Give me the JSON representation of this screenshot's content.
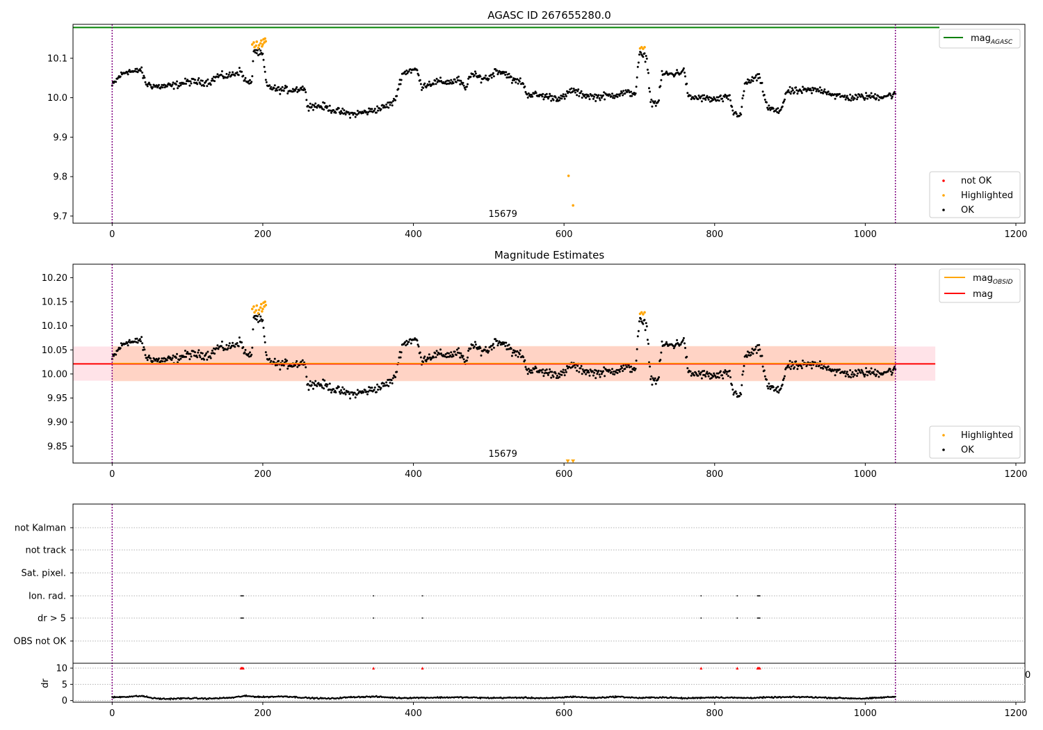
{
  "chart_data": [
    {
      "type": "scatter",
      "title": "AGASC ID 267655280.0",
      "xlim": [
        -52,
        1212
      ],
      "ylim": [
        9.682,
        10.186
      ],
      "xticks": [
        0,
        200,
        400,
        600,
        800,
        1000,
        1200
      ],
      "xtick_labels": [
        "0",
        "200",
        "400",
        "600",
        "800",
        "1000",
        "1200"
      ],
      "yticks": [
        9.7,
        9.8,
        9.9,
        10.0,
        10.1
      ],
      "ytick_labels": [
        "9.7",
        "9.8",
        "9.9",
        "10.0",
        "10.1"
      ],
      "obsid_label": "15679",
      "obsid_label_x": 520,
      "vlines": [
        0,
        1040
      ],
      "hline": {
        "name": "mag",
        "sub": "AGASC",
        "y": 10.178,
        "color": "#008000"
      },
      "legend_top": {
        "entries": [
          {
            "label": "mag",
            "sub": "AGASC",
            "color": "#008000"
          }
        ],
        "position": "top-right"
      },
      "legend_bottom": {
        "entries": [
          {
            "label": "not OK",
            "color": "#ff0000"
          },
          {
            "label": "Highlighted",
            "color": "#ffa500"
          },
          {
            "label": "OK",
            "color": "#000000"
          }
        ],
        "position": "bottom-right"
      },
      "series": [
        {
          "name": "OK",
          "color": "#000000",
          "trend": [
            [
              0,
              10.03
            ],
            [
              10,
              10.055
            ],
            [
              20,
              10.068
            ],
            [
              30,
              10.065
            ],
            [
              38,
              10.072
            ],
            [
              45,
              10.035
            ],
            [
              60,
              10.028
            ],
            [
              80,
              10.03
            ],
            [
              100,
              10.04
            ],
            [
              120,
              10.04
            ],
            [
              130,
              10.04
            ],
            [
              140,
              10.055
            ],
            [
              155,
              10.055
            ],
            [
              170,
              10.068
            ],
            [
              178,
              10.04
            ],
            [
              185,
              10.035
            ],
            [
              188,
              10.12
            ],
            [
              200,
              10.108
            ],
            [
              205,
              10.03
            ],
            [
              220,
              10.02
            ],
            [
              240,
              10.02
            ],
            [
              255,
              10.025
            ],
            [
              260,
              9.98
            ],
            [
              280,
              9.978
            ],
            [
              300,
              9.965
            ],
            [
              320,
              9.958
            ],
            [
              340,
              9.965
            ],
            [
              360,
              9.975
            ],
            [
              375,
              9.99
            ],
            [
              385,
              10.06
            ],
            [
              395,
              10.07
            ],
            [
              405,
              10.07
            ],
            [
              410,
              10.03
            ],
            [
              430,
              10.04
            ],
            [
              450,
              10.04
            ],
            [
              460,
              10.045
            ],
            [
              470,
              10.02
            ],
            [
              475,
              10.06
            ],
            [
              490,
              10.05
            ],
            [
              500,
              10.05
            ],
            [
              510,
              10.07
            ],
            [
              525,
              10.06
            ],
            [
              530,
              10.045
            ],
            [
              545,
              10.04
            ],
            [
              550,
              10.01
            ],
            [
              570,
              10.005
            ],
            [
              590,
              10.0
            ],
            [
              600,
              10.0
            ],
            [
              610,
              10.02
            ],
            [
              620,
              10.01
            ],
            [
              640,
              10.002
            ],
            [
              660,
              10.005
            ],
            [
              680,
              10.012
            ],
            [
              695,
              10.012
            ],
            [
              700,
              10.11
            ],
            [
              710,
              10.1
            ],
            [
              715,
              9.99
            ],
            [
              725,
              9.985
            ],
            [
              730,
              10.06
            ],
            [
              745,
              10.06
            ],
            [
              760,
              10.068
            ],
            [
              765,
              10.0
            ],
            [
              780,
              10.0
            ],
            [
              800,
              9.995
            ],
            [
              820,
              10.0
            ],
            [
              825,
              9.96
            ],
            [
              835,
              9.958
            ],
            [
              840,
              10.035
            ],
            [
              855,
              10.05
            ],
            [
              860,
              10.05
            ],
            [
              870,
              9.975
            ],
            [
              885,
              9.963
            ],
            [
              890,
              9.98
            ],
            [
              895,
              10.015
            ],
            [
              920,
              10.018
            ],
            [
              940,
              10.02
            ],
            [
              950,
              10.015
            ],
            [
              960,
              10.005
            ],
            [
              980,
              10.0
            ],
            [
              1000,
              10.003
            ],
            [
              1020,
              10.003
            ],
            [
              1040,
              10.008
            ]
          ]
        },
        {
          "name": "Highlighted",
          "color": "#ffa500",
          "points": [
            [
              186,
              10.135
            ],
            [
              188,
              10.14
            ],
            [
              189,
              10.128
            ],
            [
              191,
              10.132
            ],
            [
              192,
              10.142
            ],
            [
              194,
              10.126
            ],
            [
              195,
              10.133
            ],
            [
              197,
              10.138
            ],
            [
              198,
              10.145
            ],
            [
              199,
              10.13
            ],
            [
              200,
              10.135
            ],
            [
              201,
              10.148
            ],
            [
              202,
              10.14
            ],
            [
              203,
              10.15
            ],
            [
              204,
              10.143
            ],
            [
              701,
              10.125
            ],
            [
              703,
              10.128
            ],
            [
              705,
              10.124
            ],
            [
              707,
              10.128
            ],
            [
              606,
              9.802
            ],
            [
              612,
              9.727
            ]
          ]
        }
      ]
    },
    {
      "type": "scatter",
      "title": "Magnitude Estimates",
      "xlim": [
        -52,
        1212
      ],
      "ylim": [
        9.815,
        10.228
      ],
      "xticks": [
        0,
        200,
        400,
        600,
        800,
        1000,
        1200
      ],
      "xtick_labels": [
        "0",
        "200",
        "400",
        "600",
        "800",
        "1000",
        "1200"
      ],
      "yticks": [
        9.85,
        9.9,
        9.95,
        10.0,
        10.05,
        10.1,
        10.15,
        10.2
      ],
      "ytick_labels": [
        "9.85",
        "9.90",
        "9.95",
        "10.00",
        "10.05",
        "10.10",
        "10.15",
        "10.20"
      ],
      "obsid_label": "15679",
      "obsid_label_x": 520,
      "vlines": [
        0,
        1040
      ],
      "mag_line": {
        "name": "mag",
        "y": 10.021,
        "color": "#ff0000",
        "x": [
          -52,
          1093
        ],
        "band": [
          9.986,
          10.057
        ],
        "band_color": "#ffc0cb"
      },
      "obsid_line": {
        "name": "mag",
        "sub": "OBSID",
        "y": 10.022,
        "color": "#ffa500",
        "x": [
          0,
          1040
        ],
        "band": [
          9.985,
          10.058
        ],
        "band_color": "#ffc7a8"
      },
      "down_markers": [
        [
          605,
          9.818
        ],
        [
          612,
          9.818
        ]
      ],
      "legend_top": {
        "entries": [
          {
            "label": "mag",
            "sub": "OBSID",
            "color": "#ffa500"
          },
          {
            "label": "mag",
            "color": "#ff0000"
          }
        ],
        "position": "top-right"
      },
      "legend_bottom": {
        "entries": [
          {
            "label": "Highlighted",
            "color": "#ffa500"
          },
          {
            "label": "OK",
            "color": "#000000"
          }
        ],
        "position": "bottom-right"
      }
    },
    {
      "type": "scatter",
      "title": "",
      "xlim": [
        -52,
        1212
      ],
      "flag_rows": [
        "not Kalman",
        "not track",
        "Sat. pixel.",
        "Ion. rad.",
        "dr > 5",
        "OBS not OK"
      ],
      "vlines": [
        0,
        1040
      ],
      "flag_points": {
        "Ion. rad.": [
          171,
          172,
          173,
          174,
          347,
          412,
          782,
          830,
          857,
          858,
          859,
          860
        ],
        "dr > 5": [
          171,
          172,
          173,
          174,
          347,
          412,
          782,
          830,
          857,
          858,
          859,
          860
        ]
      },
      "dr": {
        "ylabel": "dr",
        "ylim": [
          -0.5,
          11.5
        ],
        "yticks": [
          0,
          5,
          10
        ],
        "ytick_labels": [
          "0",
          "5",
          "10"
        ],
        "xticks": [
          0,
          200,
          400,
          600,
          800,
          1000,
          1200
        ],
        "xtick_labels": [
          "0",
          "200",
          "400",
          "600",
          "800",
          "1000",
          "1200"
        ],
        "clipped_tick_label": "0",
        "trend": [
          [
            0,
            1.0
          ],
          [
            20,
            1.2
          ],
          [
            40,
            1.4
          ],
          [
            55,
            0.7
          ],
          [
            70,
            0.5
          ],
          [
            100,
            0.7
          ],
          [
            130,
            0.6
          ],
          [
            160,
            0.9
          ],
          [
            175,
            1.4
          ],
          [
            200,
            1.1
          ],
          [
            230,
            1.3
          ],
          [
            260,
            0.8
          ],
          [
            290,
            0.6
          ],
          [
            320,
            1.1
          ],
          [
            350,
            1.2
          ],
          [
            380,
            0.8
          ],
          [
            420,
            0.9
          ],
          [
            460,
            1.0
          ],
          [
            500,
            0.8
          ],
          [
            540,
            0.9
          ],
          [
            580,
            0.7
          ],
          [
            612,
            1.2
          ],
          [
            640,
            0.8
          ],
          [
            670,
            1.2
          ],
          [
            700,
            0.8
          ],
          [
            730,
            1.0
          ],
          [
            760,
            0.7
          ],
          [
            800,
            1.0
          ],
          [
            840,
            0.8
          ],
          [
            880,
            1.0
          ],
          [
            920,
            1.1
          ],
          [
            960,
            0.8
          ],
          [
            1000,
            0.6
          ],
          [
            1020,
            0.9
          ],
          [
            1040,
            1.2
          ]
        ],
        "marker_points": [
          [
            171,
            10
          ],
          [
            172,
            10
          ],
          [
            173,
            10
          ],
          [
            174,
            10
          ],
          [
            347,
            10
          ],
          [
            412,
            10
          ],
          [
            782,
            10
          ],
          [
            830,
            10
          ],
          [
            857,
            10
          ],
          [
            858,
            10
          ],
          [
            859,
            10
          ],
          [
            860,
            10
          ]
        ],
        "marker_color": "#ff0000"
      }
    }
  ]
}
